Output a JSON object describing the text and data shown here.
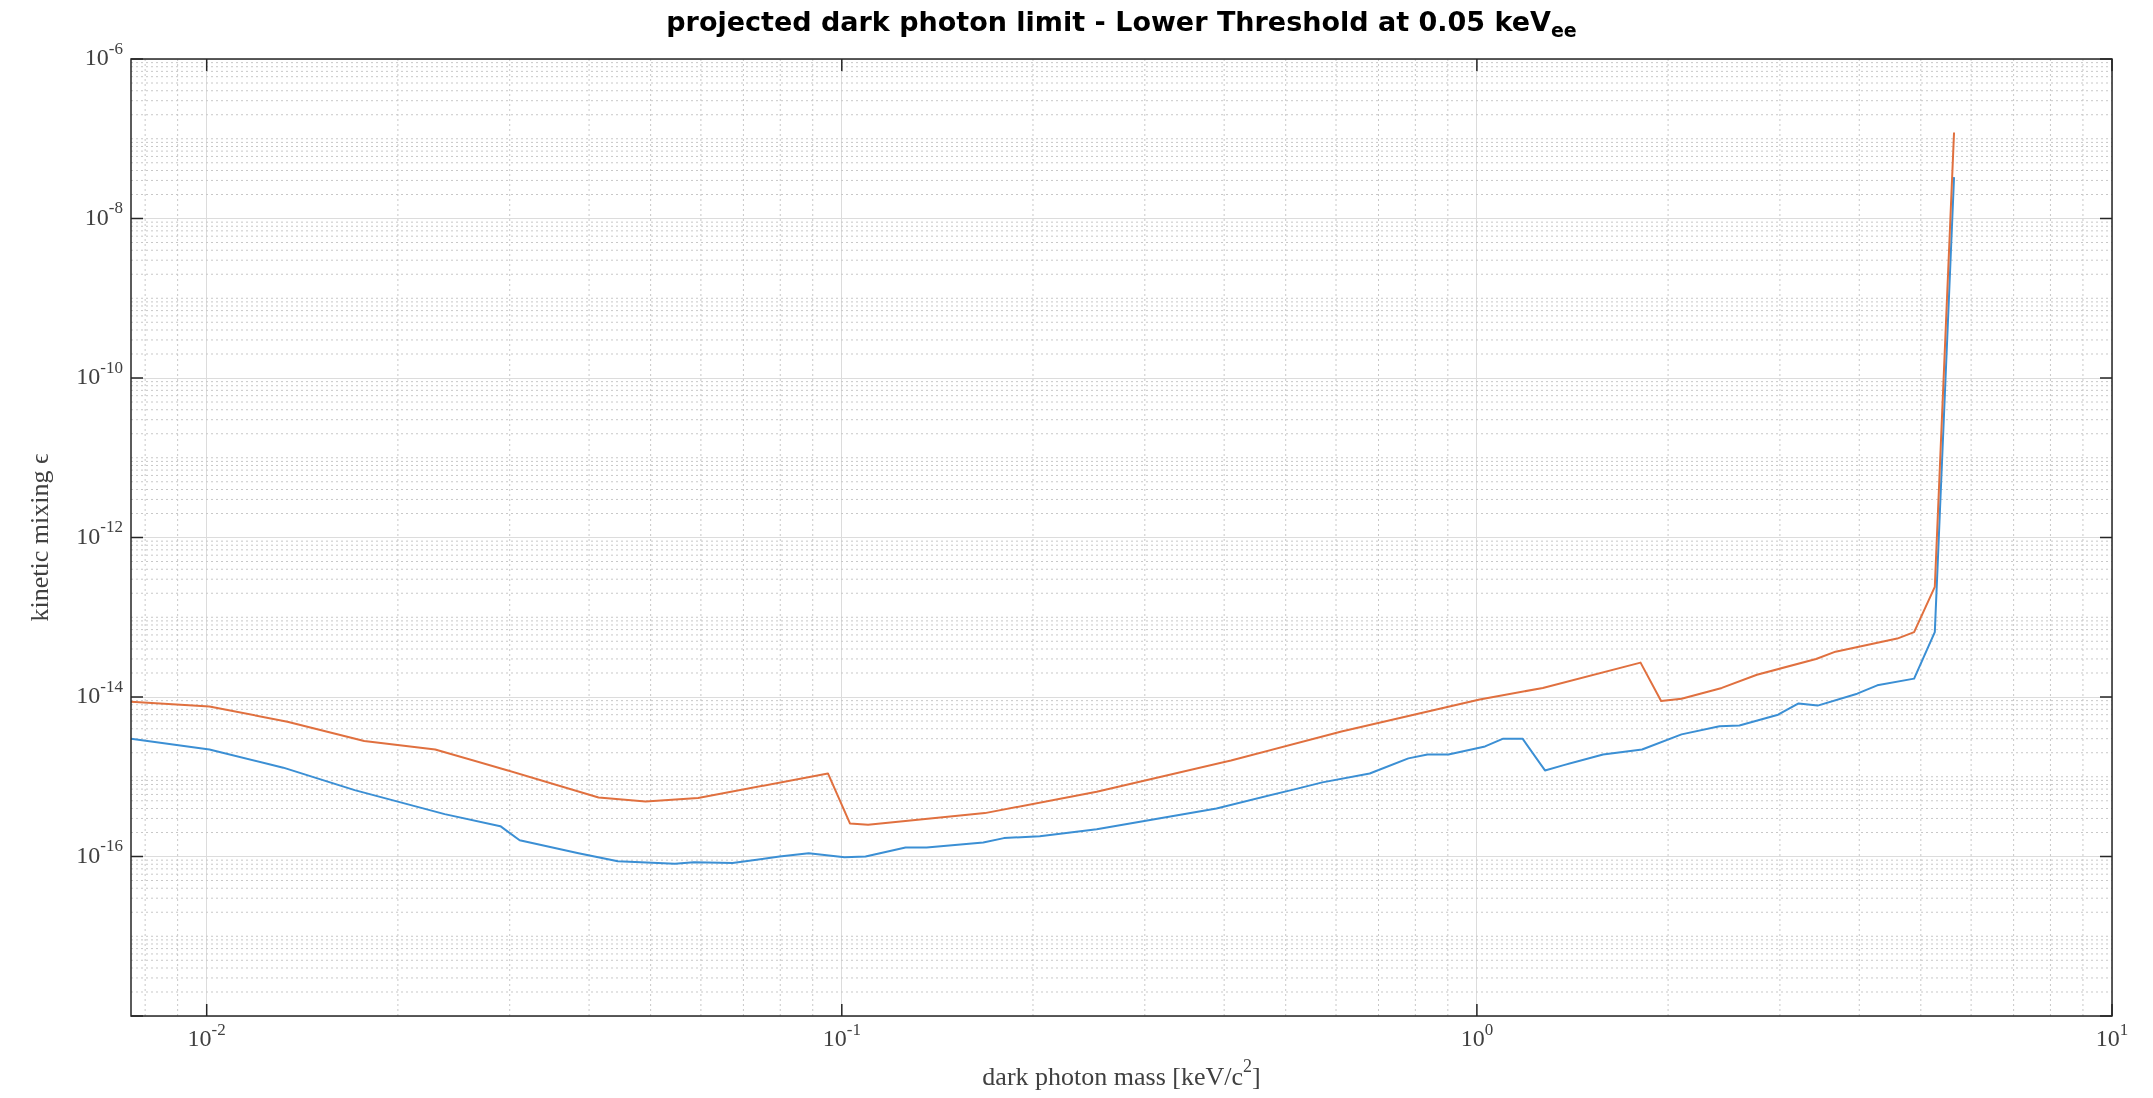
{
  "chart_data": {
    "type": "line",
    "title": "projected dark photon limit - Lower Threshold at 0.05 keV$_{ee}$",
    "xlabel": "dark photon mass [keV/c$^{2}$]",
    "ylabel": "kinetic mixing ϵ",
    "log": "xy",
    "grid": true,
    "legend": false,
    "marker": "none",
    "line_style": "solid",
    "xlim": [
      0.0076,
      10
    ],
    "ylim": [
      1e-18,
      1e-06
    ],
    "xticks": [
      {
        "value": 0.01,
        "label": "10$^{-2}$"
      },
      {
        "value": 0.1,
        "label": "10$^{-1}$"
      },
      {
        "value": 1,
        "label": "10$^{0}$"
      },
      {
        "value": 10,
        "label": "10$^{1}$"
      }
    ],
    "yticks": [
      {
        "value": 1e-18,
        "label": null
      },
      {
        "value": 1e-16,
        "label": "10$^{-16}$"
      },
      {
        "value": 1e-14,
        "label": "10$^{-14}$"
      },
      {
        "value": 1e-12,
        "label": "10$^{-12}$"
      },
      {
        "value": 1e-10,
        "label": "10$^{-10}$"
      },
      {
        "value": 1e-08,
        "label": "10$^{-8}$"
      },
      {
        "value": 1e-06,
        "label": "10$^{-6}$"
      }
    ],
    "series": [
      {
        "color": "#e0703f",
        "x": [
          0.0076,
          0.0101,
          0.0134,
          0.0177,
          0.0229,
          0.0298,
          0.0414,
          0.0491,
          0.0594,
          0.0951,
          0.103,
          0.11,
          0.168,
          0.252,
          0.41,
          0.612,
          1.01,
          1.27,
          1.81,
          1.95,
          2.1,
          2.43,
          2.76,
          3.42,
          3.67,
          4.59,
          4.88,
          5.26,
          5.64
        ],
        "values": [
          8.7e-15,
          7.6e-15,
          4.9e-15,
          2.8e-15,
          2.2e-15,
          1.2e-15,
          5.5e-16,
          4.9e-16,
          5.4e-16,
          1.1e-15,
          2.6e-16,
          2.5e-16,
          3.5e-16,
          6.5e-16,
          1.6e-15,
          3.7e-15,
          9.3e-15,
          1.3e-14,
          2.7e-14,
          8.9e-15,
          9.5e-15,
          1.3e-14,
          1.9e-14,
          3e-14,
          3.7e-14,
          5.4e-14,
          6.5e-14,
          2.4e-13,
          1.2e-07
        ]
      },
      {
        "color": "#3b8fd4",
        "x": [
          0.0076,
          0.0101,
          0.0132,
          0.0171,
          0.0237,
          0.029,
          0.0311,
          0.0385,
          0.0444,
          0.0546,
          0.0585,
          0.0673,
          0.0798,
          0.0887,
          0.101,
          0.109,
          0.126,
          0.136,
          0.167,
          0.18,
          0.205,
          0.252,
          0.389,
          0.514,
          0.571,
          0.678,
          0.78,
          0.836,
          0.902,
          1.03,
          1.1,
          1.18,
          1.28,
          1.37,
          1.58,
          1.82,
          2.1,
          2.41,
          2.59,
          2.98,
          3.21,
          3.44,
          3.97,
          4.27,
          4.88,
          5.26,
          5.64
        ],
        "values": [
          3e-15,
          2.2e-15,
          1.3e-15,
          6.8e-16,
          3.4e-16,
          2.4e-16,
          1.6e-16,
          1.1e-16,
          8.7e-17,
          8.1e-17,
          8.5e-17,
          8.3e-17,
          1e-16,
          1.1e-16,
          9.8e-17,
          1e-16,
          1.3e-16,
          1.3e-16,
          1.5e-16,
          1.7e-16,
          1.8e-16,
          2.2e-16,
          4e-16,
          6.9e-16,
          8.5e-16,
          1.1e-15,
          1.7e-15,
          1.9e-15,
          1.9e-15,
          2.4e-15,
          3e-15,
          3e-15,
          1.2e-15,
          1.4e-15,
          1.9e-15,
          2.2e-15,
          3.4e-15,
          4.3e-15,
          4.4e-15,
          6e-15,
          8.3e-15,
          7.8e-15,
          1.1e-14,
          1.4e-14,
          1.7e-14,
          6.5e-14,
          3.3e-08
        ]
      }
    ]
  }
}
